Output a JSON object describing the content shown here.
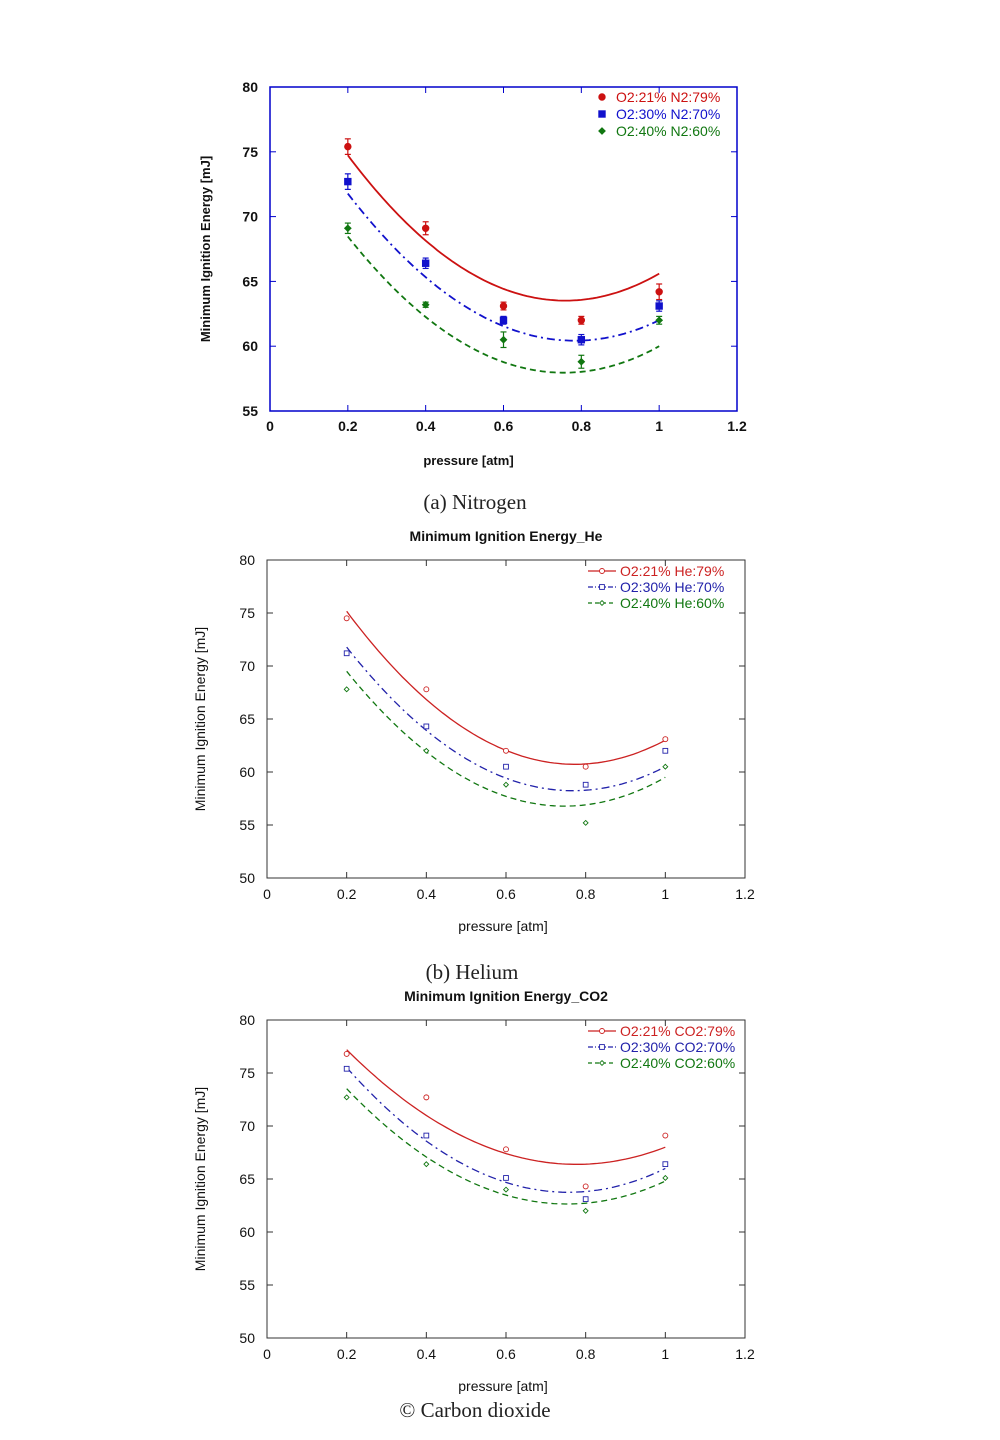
{
  "chart_data": [
    {
      "type": "scatter",
      "title": "",
      "caption": "(a)  Nitrogen",
      "xlabel": "pressure [atm]",
      "ylabel": "Minimum Ignition Energy [mJ]",
      "xlim": [
        0,
        1.2
      ],
      "ylim": [
        55,
        80
      ],
      "xticks": [
        "0",
        "0.2",
        "0.4",
        "0.6",
        "0.8",
        "1",
        "1.2"
      ],
      "yticks": [
        "55",
        "60",
        "65",
        "70",
        "75",
        "80"
      ],
      "legend_position": "top-right",
      "grid": false,
      "error_bars": true,
      "series": [
        {
          "name": "O2:21% N2:79%",
          "color": "#cc1111",
          "marker": "circle",
          "line": "solid",
          "x": [
            0.2,
            0.4,
            0.6,
            0.8,
            1.0
          ],
          "y": [
            75.4,
            69.1,
            63.1,
            62.0,
            64.2
          ],
          "err": [
            0.6,
            0.5,
            0.3,
            0.3,
            0.6
          ]
        },
        {
          "name": "O2:30% N2:70%",
          "color": "#1111cc",
          "marker": "square",
          "line": "dashdot",
          "x": [
            0.2,
            0.4,
            0.6,
            0.8,
            1.0
          ],
          "y": [
            72.7,
            66.4,
            62.0,
            60.5,
            63.1
          ],
          "err": [
            0.6,
            0.4,
            0.3,
            0.4,
            0.4
          ]
        },
        {
          "name": "O2:40% N2:60%",
          "color": "#117711",
          "marker": "diamond",
          "line": "dashed",
          "x": [
            0.2,
            0.4,
            0.6,
            0.8,
            1.0
          ],
          "y": [
            69.1,
            63.2,
            60.5,
            58.8,
            62.0
          ],
          "err": [
            0.4,
            0.2,
            0.6,
            0.5,
            0.3
          ]
        }
      ],
      "fits": [
        [
          84.2,
          -54.5,
          35.9
        ],
        [
          80.9,
          -52.3,
          33.4
        ],
        [
          77.4,
          -51.5,
          34.1
        ]
      ]
    },
    {
      "type": "scatter",
      "title": "Minimum Ignition Energy_He",
      "caption": "(b)  Helium",
      "xlabel": "pressure [atm]",
      "ylabel": "Minimum Ignition Energy [mJ]",
      "xlim": [
        0,
        1.2
      ],
      "ylim": [
        50,
        80
      ],
      "xticks": [
        "0",
        "0.2",
        "0.4",
        "0.6",
        "0.8",
        "1",
        "1.2"
      ],
      "yticks": [
        "50",
        "55",
        "60",
        "65",
        "70",
        "75",
        "80"
      ],
      "legend_position": "top-right",
      "grid": false,
      "error_bars": false,
      "series": [
        {
          "name": "O2:21% He:79%",
          "color": "#cc2222",
          "marker": "circle",
          "line": "solid",
          "x": [
            0.2,
            0.4,
            0.6,
            0.8,
            1.0
          ],
          "y": [
            74.5,
            67.8,
            62.0,
            60.5,
            63.1
          ]
        },
        {
          "name": "O2:30% He:70%",
          "color": "#2222aa",
          "marker": "square",
          "line": "dashdot",
          "x": [
            0.2,
            0.4,
            0.6,
            0.8,
            1.0
          ],
          "y": [
            71.2,
            64.3,
            60.5,
            58.8,
            62.0
          ]
        },
        {
          "name": "O2:40% He:60%",
          "color": "#117711",
          "marker": "diamond",
          "line": "dashed",
          "x": [
            0.2,
            0.4,
            0.6,
            0.8,
            1.0
          ],
          "y": [
            67.8,
            62.0,
            58.8,
            55.2,
            60.5
          ]
        }
      ],
      "fits": [
        [
          87.0,
          -68.0,
          44.0
        ],
        [
          83.0,
          -64.5,
          42.0
        ],
        [
          80.5,
          -63.5,
          42.5
        ]
      ]
    },
    {
      "type": "scatter",
      "title": "Minimum Ignition Energy_CO2",
      "caption": "© Carbon dioxide",
      "xlabel": "pressure [atm]",
      "ylabel": "Minimum Ignition Energy [mJ]",
      "xlim": [
        0,
        1.2
      ],
      "ylim": [
        50,
        80
      ],
      "xticks": [
        "0",
        "0.2",
        "0.4",
        "0.6",
        "0.8",
        "1",
        "1.2"
      ],
      "yticks": [
        "50",
        "55",
        "60",
        "65",
        "70",
        "75",
        "80"
      ],
      "legend_position": "top-right",
      "grid": false,
      "error_bars": false,
      "series": [
        {
          "name": "O2:21% CO2:79%",
          "color": "#cc2222",
          "marker": "circle",
          "line": "solid",
          "x": [
            0.2,
            0.4,
            0.6,
            0.8,
            1.0
          ],
          "y": [
            76.8,
            72.7,
            67.8,
            64.3,
            69.1
          ]
        },
        {
          "name": "O2:30% CO2:70%",
          "color": "#2222aa",
          "marker": "square",
          "line": "dashdot",
          "x": [
            0.2,
            0.4,
            0.6,
            0.8,
            1.0
          ],
          "y": [
            75.4,
            69.1,
            65.1,
            63.1,
            66.4
          ]
        },
        {
          "name": "O2:40% CO2:60%",
          "color": "#117711",
          "marker": "diamond",
          "line": "dashed",
          "x": [
            0.2,
            0.4,
            0.6,
            0.8,
            1.0
          ],
          "y": [
            72.7,
            66.4,
            64.0,
            62.0,
            65.1
          ]
        }
      ],
      "fits": [
        [
          86.0,
          -50.5,
          32.5
        ],
        [
          85.5,
          -57.5,
          38.0
        ],
        [
          82.8,
          -53.5,
          35.5
        ]
      ]
    }
  ],
  "colors": {
    "axis_frame_a": "#0000cc",
    "axis_frame_bc": "#333333",
    "text": "#111111"
  }
}
